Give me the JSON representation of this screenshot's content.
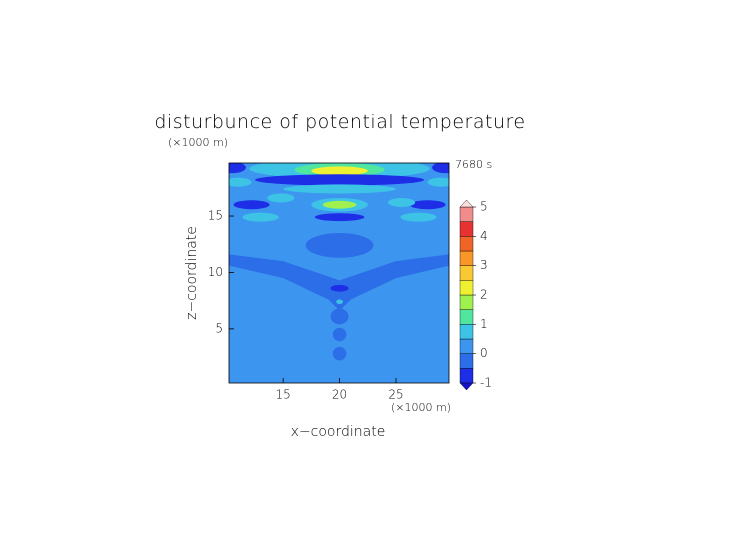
{
  "chart_data": {
    "type": "contour",
    "title": "disturbunce of potential temperature",
    "y_unit": "(×1000 m)",
    "x_unit": "(×1000 m)",
    "time": "7680 s",
    "xlabel": "x−coordinate",
    "ylabel": "z−coordinate",
    "xlim": [
      10.2,
      29.7
    ],
    "ylim": [
      0.2,
      19.7
    ],
    "xticks": [
      15,
      20,
      25
    ],
    "yticks": [
      5,
      10,
      15
    ],
    "background_level": 0.1,
    "levels": [
      -1,
      -0.5,
      0,
      0.5,
      1,
      1.5,
      2,
      2.5,
      3,
      3.5,
      4,
      4.5,
      5
    ],
    "colors": [
      "#1e2de6",
      "#2c6ee8",
      "#3c96f0",
      "#3cc3e6",
      "#50e6a0",
      "#a0f050",
      "#f0f032",
      "#fac832",
      "#fa9628",
      "#f06428",
      "#e63232",
      "#f08c8c",
      "#f5b4b4"
    ],
    "under_color": "#1414c8",
    "over_color": "#fadcdc",
    "colorbar_ticks": [
      -1,
      0,
      1,
      2,
      3,
      4,
      5
    ],
    "polygons": [
      {
        "level": -0.2,
        "points": [
          [
            10.2,
            11.6
          ],
          [
            15,
            11
          ],
          [
            20,
            9.3
          ],
          [
            25,
            11
          ],
          [
            29.7,
            11.6
          ],
          [
            29.7,
            10.6
          ],
          [
            25,
            9.5
          ],
          [
            21,
            7.6
          ],
          [
            20,
            6.6
          ],
          [
            19,
            7.6
          ],
          [
            15,
            9.5
          ],
          [
            10.2,
            10.6
          ]
        ]
      }
    ],
    "ellipses": [
      {
        "x": 20,
        "z": 12.4,
        "rx": 3,
        "rz": 1.1,
        "level": -0.2
      },
      {
        "x": 20,
        "z": 6.1,
        "rx": 0.8,
        "rz": 0.7,
        "level": -0.2
      },
      {
        "x": 20,
        "z": 4.5,
        "rx": 0.6,
        "rz": 0.6,
        "level": -0.2
      },
      {
        "x": 20,
        "z": 2.8,
        "rx": 0.6,
        "rz": 0.6,
        "level": -0.2
      },
      {
        "x": 20,
        "z": 19.2,
        "rx": 8,
        "rz": 0.9,
        "level": 0.7
      },
      {
        "x": 20,
        "z": 19.1,
        "rx": 4,
        "rz": 0.6,
        "level": 1.2
      },
      {
        "x": 20,
        "z": 19.0,
        "rx": 2.5,
        "rz": 0.4,
        "level": 2.2
      },
      {
        "x": 10.5,
        "z": 19.3,
        "rx": 1.2,
        "rz": 0.5,
        "level": -0.7
      },
      {
        "x": 29.4,
        "z": 19.3,
        "rx": 1.2,
        "rz": 0.5,
        "level": -0.7
      },
      {
        "x": 20,
        "z": 18.2,
        "rx": 7.5,
        "rz": 0.5,
        "level": -0.7
      },
      {
        "x": 11,
        "z": 18.0,
        "rx": 1.2,
        "rz": 0.4,
        "level": 0.7
      },
      {
        "x": 29,
        "z": 18.0,
        "rx": 1.2,
        "rz": 0.4,
        "level": 0.7
      },
      {
        "x": 20,
        "z": 17.4,
        "rx": 5,
        "rz": 0.4,
        "level": 0.7
      },
      {
        "x": 20,
        "z": 16.0,
        "rx": 2.5,
        "rz": 0.6,
        "level": 0.7
      },
      {
        "x": 20,
        "z": 16.0,
        "rx": 1.5,
        "rz": 0.35,
        "level": 1.7
      },
      {
        "x": 12.2,
        "z": 16.0,
        "rx": 1.6,
        "rz": 0.4,
        "level": -0.7
      },
      {
        "x": 27.8,
        "z": 16.0,
        "rx": 1.6,
        "rz": 0.4,
        "level": -0.7
      },
      {
        "x": 14.8,
        "z": 16.6,
        "rx": 1.2,
        "rz": 0.4,
        "level": 0.7
      },
      {
        "x": 25.5,
        "z": 16.2,
        "rx": 1.2,
        "rz": 0.4,
        "level": 0.7
      },
      {
        "x": 13,
        "z": 14.9,
        "rx": 1.6,
        "rz": 0.4,
        "level": 0.7
      },
      {
        "x": 27,
        "z": 14.9,
        "rx": 1.6,
        "rz": 0.4,
        "level": 0.7
      },
      {
        "x": 20,
        "z": 14.9,
        "rx": 2.2,
        "rz": 0.35,
        "level": -0.7
      },
      {
        "x": 20,
        "z": 8.6,
        "rx": 0.8,
        "rz": 0.3,
        "level": -0.7
      },
      {
        "x": 20,
        "z": 7.4,
        "rx": 0.3,
        "rz": 0.2,
        "level": 0.7
      }
    ]
  }
}
